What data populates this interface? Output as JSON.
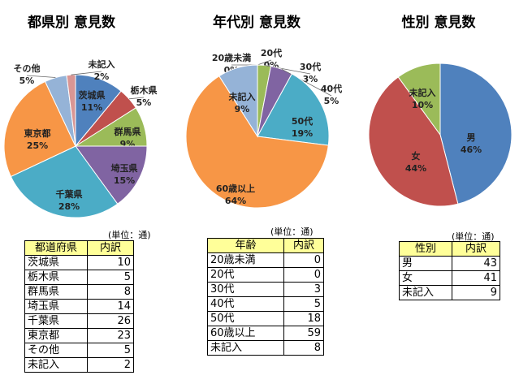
{
  "chart_data": [
    {
      "type": "pie",
      "title": "都県別 意見数",
      "categories": [
        "茨城県",
        "栃木県",
        "群馬県",
        "埼玉県",
        "千葉県",
        "東京都",
        "その他",
        "未記入"
      ],
      "values": [
        11,
        5,
        9,
        15,
        28,
        25,
        5,
        2
      ],
      "value_labels": [
        "11%",
        "5%",
        "9%",
        "15%",
        "28%",
        "25%",
        "5%",
        "2%"
      ],
      "colors": [
        "#4f81bd",
        "#c0504d",
        "#9bbb59",
        "#8064a2",
        "#4bacc6",
        "#f79646",
        "#95b3d7",
        "#d99694"
      ]
    },
    {
      "type": "pie",
      "title": "年代別 意見数",
      "categories": [
        "20歳未満",
        "20代",
        "30代",
        "40代",
        "50代",
        "60歳以上",
        "未記入"
      ],
      "values": [
        0,
        0,
        3,
        5,
        19,
        64,
        9
      ],
      "value_labels": [
        "0%",
        "0%",
        "3%",
        "5%",
        "19%",
        "64%",
        "9%"
      ],
      "colors": [
        "#4f81bd",
        "#c0504d",
        "#9bbb59",
        "#8064a2",
        "#4bacc6",
        "#f79646",
        "#95b3d7"
      ]
    },
    {
      "type": "pie",
      "title": "性別 意見数",
      "categories": [
        "男",
        "女",
        "未記入"
      ],
      "values": [
        46,
        44,
        10
      ],
      "value_labels": [
        "46%",
        "44%",
        "10%"
      ],
      "colors": [
        "#4f81bd",
        "#c0504d",
        "#9bbb59"
      ]
    }
  ],
  "tables": [
    {
      "unit": "(単位：通)",
      "header": [
        "都道府県",
        "内訳"
      ],
      "rows": [
        [
          "茨城県",
          10
        ],
        [
          "栃木県",
          5
        ],
        [
          "群馬県",
          8
        ],
        [
          "埼玉県",
          14
        ],
        [
          "千葉県",
          26
        ],
        [
          "東京都",
          23
        ],
        [
          "その他",
          5
        ],
        [
          "未記入",
          2
        ]
      ]
    },
    {
      "unit": "(単位：通)",
      "header": [
        "年齢",
        "内訳"
      ],
      "rows": [
        [
          "20歳未満",
          0
        ],
        [
          "20代",
          0
        ],
        [
          "30代",
          3
        ],
        [
          "40代",
          5
        ],
        [
          "50代",
          18
        ],
        [
          "60歳以上",
          59
        ],
        [
          "未記入",
          8
        ]
      ]
    },
    {
      "unit": "(単位：通)",
      "header": [
        "性別",
        "内訳"
      ],
      "rows": [
        [
          "男",
          43
        ],
        [
          "女",
          41
        ],
        [
          "未記入",
          9
        ]
      ]
    }
  ]
}
